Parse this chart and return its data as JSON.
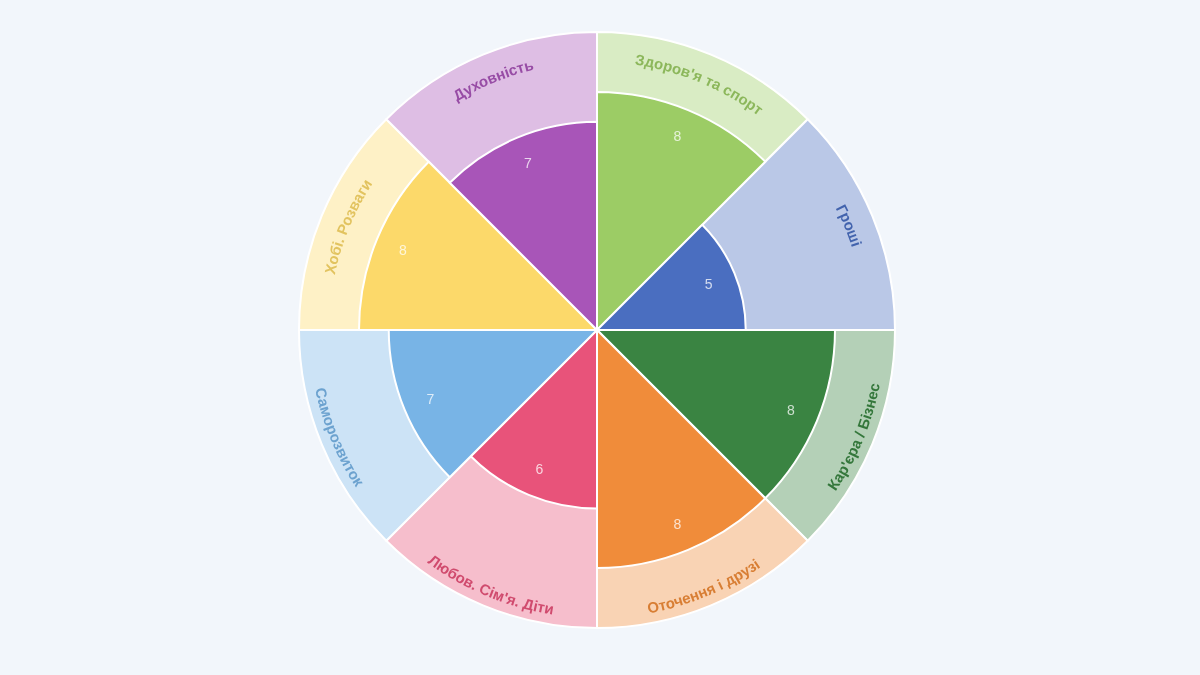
{
  "chart_data": {
    "type": "other",
    "categories": [
      "Здоров'я та спорт",
      "Гроші",
      "Кар'єра / Бізнес",
      "Оточення і друзі",
      "Любов. Сім'я. Діти",
      "Саморозвиток",
      "Хобі. Розваги",
      "Духовність"
    ],
    "values": [
      8,
      5,
      8,
      8,
      6,
      7,
      8,
      7
    ],
    "colors": [
      "#9ccc65",
      "#4a6ec0",
      "#3a8442",
      "#f08c3a",
      "#e8537a",
      "#78b4e6",
      "#fcd96a",
      "#a855b8"
    ],
    "data_labels": true
  }
}
